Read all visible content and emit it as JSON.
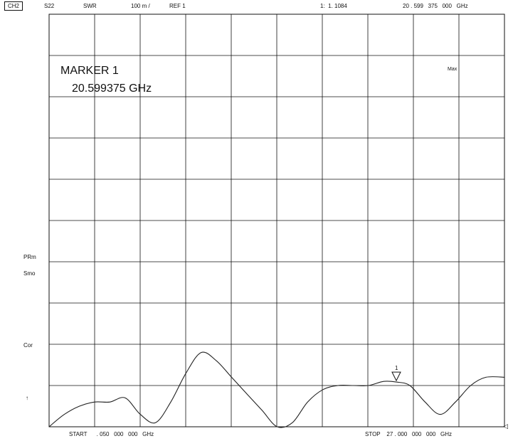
{
  "header": {
    "channel": "CH2",
    "param": "S22",
    "format": "SWR",
    "scale": "100 m /",
    "ref": "REF 1",
    "marker_value": "1:  1. 1084",
    "marker_freq": "20 . 599   375   000   GHz"
  },
  "side_labels": {
    "prm": "PRm",
    "smo": "Smo",
    "cor": "Cor",
    "arrow": "↑"
  },
  "plot": {
    "marker_box_title": "MARKER 1",
    "marker_box_freq": "20.599375 GHz",
    "max_label": "Max",
    "marker_id": "1",
    "ref_arrow": "◁"
  },
  "footer": {
    "start": "START      . 050   000   000   GHz",
    "stop": "STOP    27 . 000   000   000   GHz"
  },
  "chart_data": {
    "type": "line",
    "title": "",
    "xlabel": "",
    "ylabel": "",
    "xlim": [
      0.05,
      27.0
    ],
    "ylim": [
      1.0,
      2.0
    ],
    "grid": true,
    "series": [
      {
        "x": [
          0.05,
          0.95,
          1.85,
          2.75,
          3.65,
          4.55,
          5.45,
          6.35,
          7.25,
          8.15,
          9.05,
          9.95,
          10.85,
          11.75,
          12.65,
          13.55,
          14.45,
          15.35,
          16.25,
          17.15,
          18.05,
          18.95,
          19.85,
          20.6,
          21.4,
          22.3,
          23.2,
          24.1,
          25.0,
          25.9,
          27.0
        ],
        "y": [
          1.0,
          1.03,
          1.05,
          1.06,
          1.06,
          1.07,
          1.03,
          1.01,
          1.06,
          1.13,
          1.18,
          1.16,
          1.12,
          1.08,
          1.04,
          1.0,
          1.01,
          1.06,
          1.09,
          1.1,
          1.1,
          1.1,
          1.11,
          1.1084,
          1.1,
          1.06,
          1.03,
          1.06,
          1.1,
          1.12,
          1.12
        ]
      }
    ],
    "marker": {
      "id": "1",
      "x": 20.599375,
      "y": 1.1084
    }
  }
}
